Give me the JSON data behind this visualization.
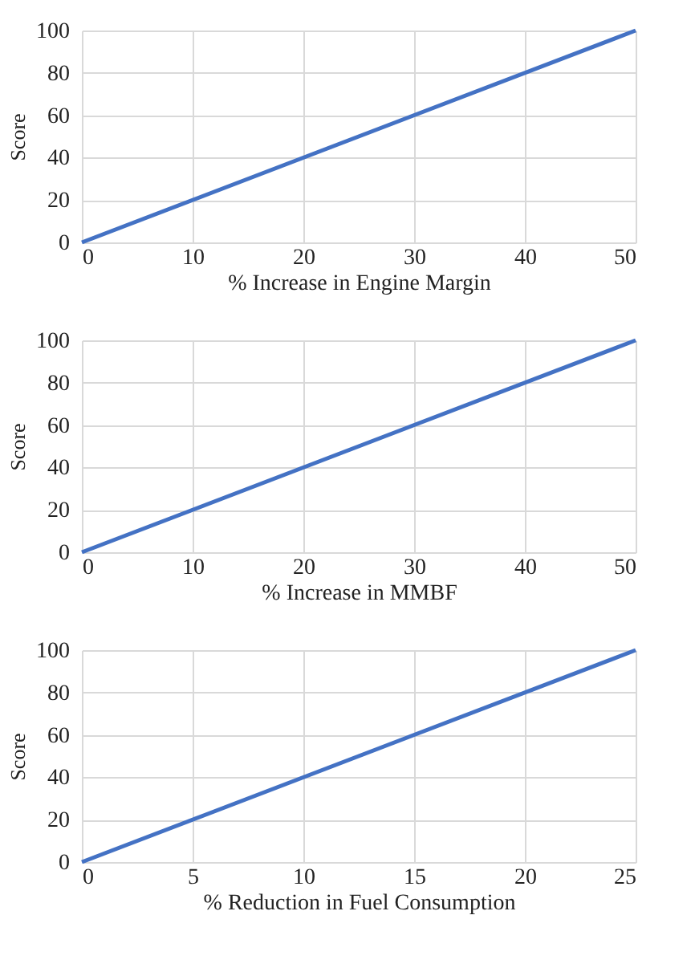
{
  "chart_data": [
    {
      "type": "line",
      "x": [
        0,
        50
      ],
      "values": [
        0,
        100
      ],
      "color": "#4472c4",
      "xlabel": "% Increase in Engine Margin",
      "ylabel": "Score",
      "xlim": [
        0,
        50
      ],
      "xticks": [
        0,
        10,
        20,
        30,
        40,
        50
      ],
      "ylim": [
        0,
        100
      ],
      "yticks": [
        0,
        20,
        40,
        60,
        80,
        100
      ],
      "grid": true
    },
    {
      "type": "line",
      "x": [
        0,
        50
      ],
      "values": [
        0,
        100
      ],
      "color": "#4472c4",
      "xlabel": "% Increase in MMBF",
      "ylabel": "Score",
      "xlim": [
        0,
        50
      ],
      "xticks": [
        0,
        10,
        20,
        30,
        40,
        50
      ],
      "ylim": [
        0,
        100
      ],
      "yticks": [
        0,
        20,
        40,
        60,
        80,
        100
      ],
      "grid": true
    },
    {
      "type": "line",
      "x": [
        0,
        25
      ],
      "values": [
        0,
        100
      ],
      "color": "#4472c4",
      "xlabel": "% Reduction in Fuel Consumption",
      "ylabel": "Score",
      "xlim": [
        0,
        25
      ],
      "xticks": [
        0,
        5,
        10,
        15,
        20,
        25
      ],
      "ylim": [
        0,
        100
      ],
      "yticks": [
        0,
        20,
        40,
        60,
        80,
        100
      ],
      "grid": true
    }
  ]
}
